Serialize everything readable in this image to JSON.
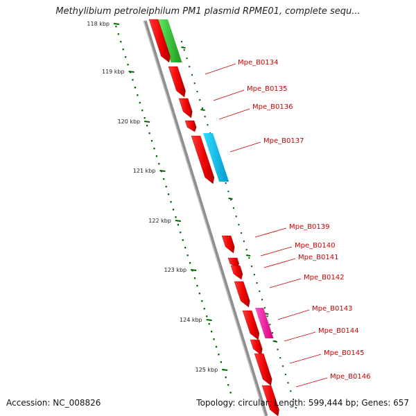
{
  "header": {
    "title": "Methylibium petroleiphilum PM1 plasmid RPME01, complete sequ..."
  },
  "footer": {
    "accession": "Accession: NC_008826",
    "summary": "Topology: circular; Length: 599,444 bp; Genes: 657"
  },
  "scale": {
    "ticks": [
      "118 kbp",
      "119 kbp",
      "120 kbp",
      "121 kbp",
      "122 kbp",
      "123 kbp",
      "124 kbp",
      "125 kbp"
    ]
  },
  "genes": {
    "labels": [
      "Mpe_B0134",
      "Mpe_B0135",
      "Mpe_B0136",
      "Mpe_B0137",
      "Mpe_B0139",
      "Mpe_B0140",
      "Mpe_B0141",
      "Mpe_B0142",
      "Mpe_B0143",
      "Mpe_B0144",
      "Mpe_B0145",
      "Mpe_B0146"
    ]
  },
  "colors": {
    "forward_cds": "#ff0000",
    "green_feature": "#33cc33",
    "cyan_feature": "#00bbee",
    "magenta_feature": "#ff1aa8",
    "backbone": "#888888",
    "label": "#cc0000",
    "scale_dots": "#006600"
  }
}
